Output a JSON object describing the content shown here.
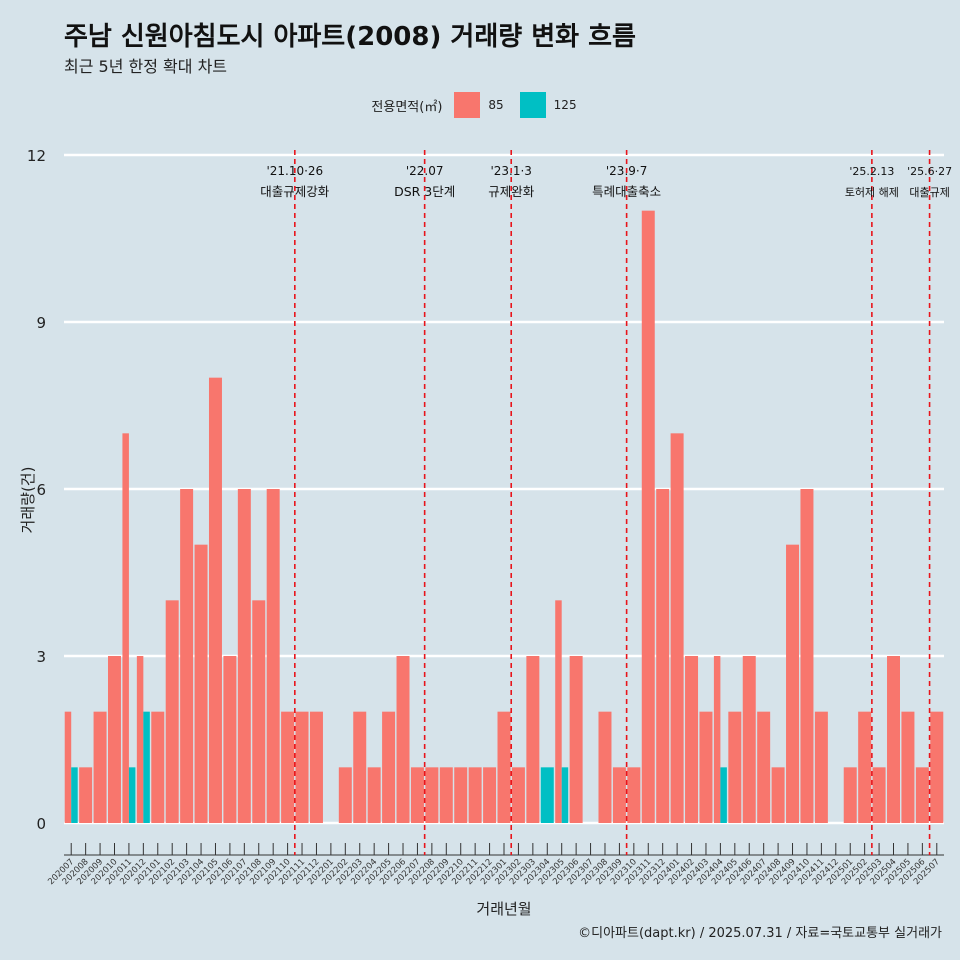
{
  "title": "주남 신원아침도시 아파트(2008) 거래량 변화 흐름",
  "subtitle": "최근 5년 한정 확대 차트",
  "caption": "©디아파트(dapt.kr) / 2025.07.31 / 자료=국토교통부 실거래가",
  "legend": {
    "title": "전용면적(㎡)",
    "items": [
      {
        "label": "85",
        "color": "#f8766d"
      },
      {
        "label": "125",
        "color": "#00bfc4"
      }
    ]
  },
  "chart_data": {
    "type": "bar",
    "title": "주남 신원아침도시 아파트(2008) 거래량 변화 흐름",
    "subtitle": "최근 5년 한정 확대 차트",
    "xlabel": "거래년월",
    "ylabel": "거래량(건)",
    "ylim": [
      0,
      12
    ],
    "yticks": [
      0,
      3,
      6,
      9,
      12
    ],
    "grid": "horizontal",
    "legend_position": "top",
    "bar_layout": "dodge",
    "categories": [
      "202007",
      "202008",
      "202009",
      "202010",
      "202011",
      "202012",
      "202101",
      "202102",
      "202103",
      "202104",
      "202105",
      "202106",
      "202107",
      "202108",
      "202109",
      "202110",
      "202111",
      "202112",
      "202201",
      "202202",
      "202203",
      "202204",
      "202205",
      "202206",
      "202207",
      "202208",
      "202209",
      "202210",
      "202211",
      "202212",
      "202301",
      "202302",
      "202303",
      "202304",
      "202305",
      "202306",
      "202307",
      "202308",
      "202309",
      "202310",
      "202311",
      "202312",
      "202401",
      "202402",
      "202403",
      "202404",
      "202405",
      "202406",
      "202407",
      "202408",
      "202409",
      "202410",
      "202411",
      "202412",
      "202501",
      "202502",
      "202503",
      "202504",
      "202505",
      "202506",
      "202507"
    ],
    "series": [
      {
        "name": "85",
        "color": "#f8766d",
        "values": [
          2,
          1,
          2,
          3,
          7,
          3,
          2,
          4,
          6,
          5,
          8,
          3,
          6,
          4,
          6,
          2,
          2,
          2,
          0,
          1,
          2,
          1,
          2,
          3,
          1,
          1,
          1,
          1,
          1,
          1,
          2,
          1,
          3,
          0,
          4,
          3,
          0,
          2,
          1,
          1,
          11,
          6,
          7,
          3,
          2,
          3,
          2,
          3,
          2,
          1,
          5,
          6,
          2,
          0,
          1,
          2,
          1,
          3,
          2,
          1,
          2
        ]
      },
      {
        "name": "125",
        "color": "#00bfc4",
        "values": [
          1,
          0,
          0,
          0,
          1,
          2,
          0,
          0,
          0,
          0,
          0,
          0,
          0,
          0,
          0,
          0,
          0,
          0,
          0,
          0,
          0,
          0,
          0,
          0,
          0,
          0,
          0,
          0,
          0,
          0,
          0,
          0,
          0,
          1,
          1,
          0,
          0,
          0,
          0,
          0,
          0,
          0,
          0,
          0,
          0,
          1,
          0,
          0,
          0,
          0,
          0,
          0,
          0,
          0,
          0,
          0,
          0,
          0,
          0,
          0,
          0
        ]
      }
    ],
    "events": [
      {
        "index": 15.5,
        "date": "'21.10·26",
        "label": "대출규제강화"
      },
      {
        "index": 24.5,
        "date": "'22.07",
        "label": "DSR 3단계"
      },
      {
        "index": 30.5,
        "date": "'23.1·3",
        "label": "규제완화"
      },
      {
        "index": 38.5,
        "date": "'23.9·7",
        "label": "특례대출축소"
      },
      {
        "index": 55.5,
        "date": "'25.2.13",
        "label": "토허제 해제"
      },
      {
        "index": 59.5,
        "date": "'25.6·27",
        "label": "대출규제"
      }
    ]
  }
}
